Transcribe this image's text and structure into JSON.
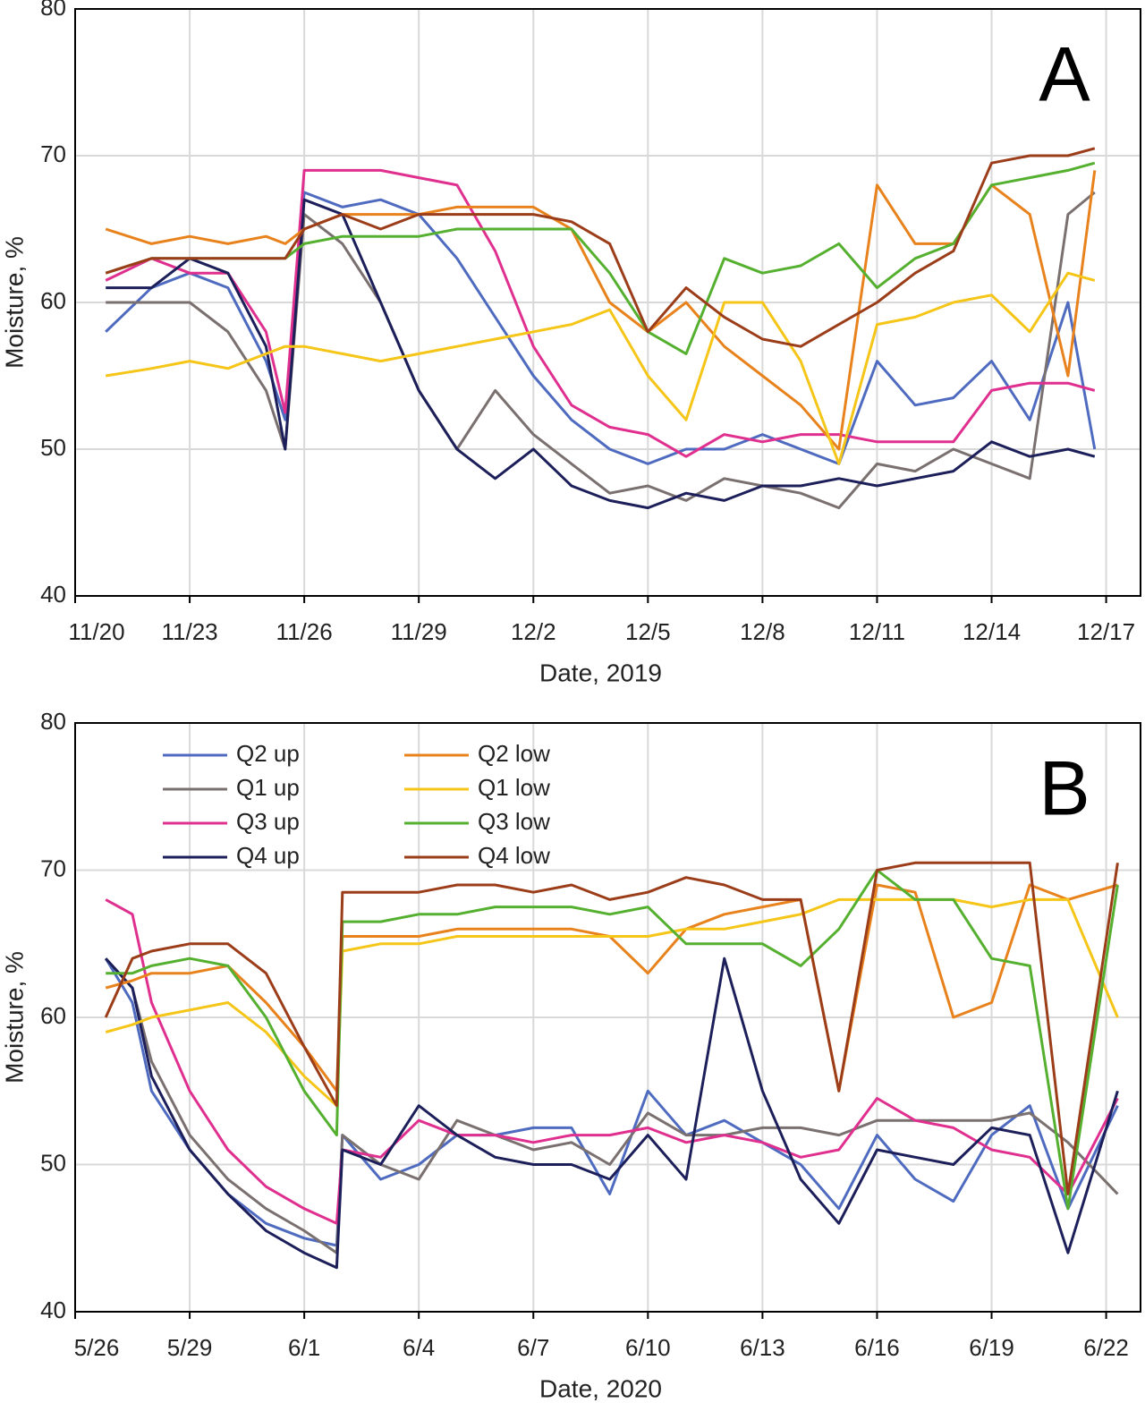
{
  "chart_data": [
    {
      "type": "line",
      "annotation": "A",
      "x_label": "Date, 2019",
      "y_label": "Moisture, %",
      "xlim": [
        0,
        27.9
      ],
      "ylim": [
        40,
        80
      ],
      "grid": true,
      "xticks": [
        {
          "value": 0,
          "label": "11/20"
        },
        {
          "value": 3,
          "label": "11/23"
        },
        {
          "value": 6,
          "label": "11/26"
        },
        {
          "value": 9,
          "label": "11/29"
        },
        {
          "value": 12,
          "label": "12/2"
        },
        {
          "value": 15,
          "label": "12/5"
        },
        {
          "value": 18,
          "label": "12/8"
        },
        {
          "value": 21,
          "label": "12/11"
        },
        {
          "value": 24,
          "label": "12/14"
        },
        {
          "value": 27,
          "label": "12/17"
        }
      ],
      "yticks": [
        40,
        50,
        60,
        70,
        80
      ],
      "x": [
        0.8,
        2,
        3,
        4,
        5,
        5.5,
        6,
        7,
        8,
        9,
        10,
        11,
        12,
        13,
        14,
        15,
        16,
        17,
        18,
        19,
        20,
        21,
        22,
        23,
        24,
        25,
        26,
        26.7
      ],
      "series": [
        {
          "color": "#4f6bc0",
          "values": [
            58,
            61,
            62,
            61,
            56,
            52,
            67.5,
            66.5,
            67,
            66,
            63,
            59,
            55,
            52,
            50,
            49,
            50,
            50,
            51,
            50,
            49,
            56,
            53,
            53.5,
            56,
            52,
            60,
            50
          ]
        },
        {
          "color": "#7a7070",
          "values": [
            60,
            60,
            60,
            58,
            54,
            50,
            66,
            64,
            60,
            54,
            50,
            54,
            51,
            49,
            47,
            47.5,
            46.5,
            48,
            47.5,
            47,
            46,
            49,
            48.5,
            50,
            49,
            48,
            66,
            67.5
          ]
        },
        {
          "color": "#e0308f",
          "values": [
            61.5,
            63,
            62,
            62,
            58,
            52.5,
            69,
            69,
            69,
            68.5,
            68,
            63.5,
            57,
            53,
            51.5,
            51,
            49.5,
            51,
            50.5,
            51,
            51,
            50.5,
            50.5,
            50.5,
            54,
            54.5,
            54.5,
            54
          ]
        },
        {
          "color": "#1c1f5a",
          "values": [
            61,
            61,
            63,
            62,
            57,
            50,
            67,
            66,
            60,
            54,
            50,
            48,
            50,
            47.5,
            46.5,
            46,
            47,
            46.5,
            47.5,
            47.5,
            48,
            47.5,
            48,
            48.5,
            50.5,
            49.5,
            50,
            49.5
          ]
        },
        {
          "color": "#e8821c",
          "values": [
            65,
            64,
            64.5,
            64,
            64.5,
            64,
            65,
            66,
            66,
            66,
            66.5,
            66.5,
            66.5,
            65,
            60,
            58,
            60,
            57,
            55,
            53,
            50,
            68,
            64,
            64,
            68,
            66,
            55,
            69
          ]
        },
        {
          "color": "#f5c518",
          "values": [
            55,
            55.5,
            56,
            55.5,
            56.5,
            57,
            57,
            56.5,
            56,
            56.5,
            57,
            57.5,
            58,
            58.5,
            59.5,
            55,
            52,
            60,
            60,
            56,
            49,
            58.5,
            59,
            60,
            60.5,
            58,
            62,
            61.5
          ]
        },
        {
          "color": "#55b030",
          "values": [
            62,
            63,
            63,
            63,
            63,
            63,
            64,
            64.5,
            64.5,
            64.5,
            65,
            65,
            65,
            65,
            62,
            58,
            56.5,
            63,
            62,
            62.5,
            64,
            61,
            63,
            64,
            68,
            68.5,
            69,
            69.5
          ]
        },
        {
          "color": "#9c3d1a",
          "values": [
            62,
            63,
            63,
            63,
            63,
            63,
            65,
            66,
            65,
            66,
            66,
            66,
            66,
            65.5,
            64,
            58,
            61,
            59,
            57.5,
            57,
            58.5,
            60,
            62,
            63.5,
            69.5,
            70,
            70,
            70.5
          ]
        }
      ]
    },
    {
      "type": "line",
      "annotation": "B",
      "x_label": "Date, 2020",
      "y_label": "Moisture, %",
      "xlim": [
        0,
        27.9
      ],
      "ylim": [
        40,
        80
      ],
      "grid": true,
      "legend": "upper left",
      "xticks": [
        {
          "value": 0,
          "label": "5/26"
        },
        {
          "value": 3,
          "label": "5/29"
        },
        {
          "value": 6,
          "label": "6/1"
        },
        {
          "value": 9,
          "label": "6/4"
        },
        {
          "value": 12,
          "label": "6/7"
        },
        {
          "value": 15,
          "label": "6/10"
        },
        {
          "value": 18,
          "label": "6/13"
        },
        {
          "value": 21,
          "label": "6/16"
        },
        {
          "value": 24,
          "label": "6/19"
        },
        {
          "value": 27,
          "label": "6/22"
        }
      ],
      "yticks": [
        40,
        50,
        60,
        70,
        80
      ],
      "x": [
        0.8,
        1.5,
        2,
        3,
        4,
        5,
        6,
        6.85,
        7,
        8,
        9,
        10,
        11,
        12,
        13,
        14,
        15,
        16,
        17,
        18,
        19,
        20,
        21,
        22,
        23,
        24,
        25,
        26,
        27.3
      ],
      "series": [
        {
          "name": "Q2 up",
          "color": "#4f6bc0",
          "values": [
            64,
            61,
            55,
            51,
            48,
            46,
            45,
            44.5,
            52,
            49,
            50,
            52,
            52,
            52.5,
            52.5,
            48,
            55,
            52,
            53,
            51.5,
            50,
            47,
            52,
            49,
            47.5,
            52,
            54,
            47,
            54
          ]
        },
        {
          "name": "Q1 up",
          "color": "#7a7070",
          "values": [
            64,
            62,
            57,
            52,
            49,
            47,
            45.5,
            44,
            52,
            50,
            49,
            53,
            52,
            51,
            51.5,
            50,
            53.5,
            52,
            52,
            52.5,
            52.5,
            52,
            53,
            53,
            53,
            53,
            53.5,
            51.5,
            48
          ]
        },
        {
          "name": "Q3 up",
          "color": "#e0308f",
          "values": [
            68,
            67,
            61,
            55,
            51,
            48.5,
            47,
            46,
            51,
            50.5,
            53,
            52,
            52,
            51.5,
            52,
            52,
            52.5,
            51.5,
            52,
            51.5,
            50.5,
            51,
            54.5,
            53,
            52.5,
            51,
            50.5,
            48,
            54.5
          ]
        },
        {
          "name": "Q4 up",
          "color": "#1c1f5a",
          "values": [
            64,
            62,
            56,
            51,
            48,
            45.5,
            44,
            43,
            51,
            50,
            54,
            52,
            50.5,
            50,
            50,
            49,
            52,
            49,
            64,
            55,
            49,
            46,
            51,
            50.5,
            50,
            52.5,
            52,
            44,
            55
          ]
        },
        {
          "name": "Q2 low",
          "color": "#e8821c",
          "values": [
            62,
            62.5,
            63,
            63,
            63.5,
            61,
            58,
            55,
            65.5,
            65.5,
            65.5,
            66,
            66,
            66,
            66,
            65.5,
            63,
            66,
            67,
            67.5,
            68,
            55,
            69,
            68.5,
            60,
            61,
            69,
            68,
            69
          ]
        },
        {
          "name": "Q1 low",
          "color": "#f5c518",
          "values": [
            59,
            59.5,
            60,
            60.5,
            61,
            59,
            56,
            54,
            64.5,
            65,
            65,
            65.5,
            65.5,
            65.5,
            65.5,
            65.5,
            65.5,
            66,
            66,
            66.5,
            67,
            68,
            68,
            68,
            68,
            67.5,
            68,
            68,
            60
          ]
        },
        {
          "name": "Q3 low",
          "color": "#55b030",
          "values": [
            63,
            63,
            63.5,
            64,
            63.5,
            60,
            55,
            52,
            66.5,
            66.5,
            67,
            67,
            67.5,
            67.5,
            67.5,
            67,
            67.5,
            65,
            65,
            65,
            63.5,
            66,
            70,
            68,
            68,
            64,
            63.5,
            47,
            69
          ]
        },
        {
          "name": "Q4 low",
          "color": "#9c3d1a",
          "values": [
            60,
            64,
            64.5,
            65,
            65,
            63,
            58,
            54,
            68.5,
            68.5,
            68.5,
            69,
            69,
            68.5,
            69,
            68,
            68.5,
            69.5,
            69,
            68,
            68,
            55,
            70,
            70.5,
            70.5,
            70.5,
            70.5,
            48,
            70.5
          ]
        }
      ]
    }
  ]
}
